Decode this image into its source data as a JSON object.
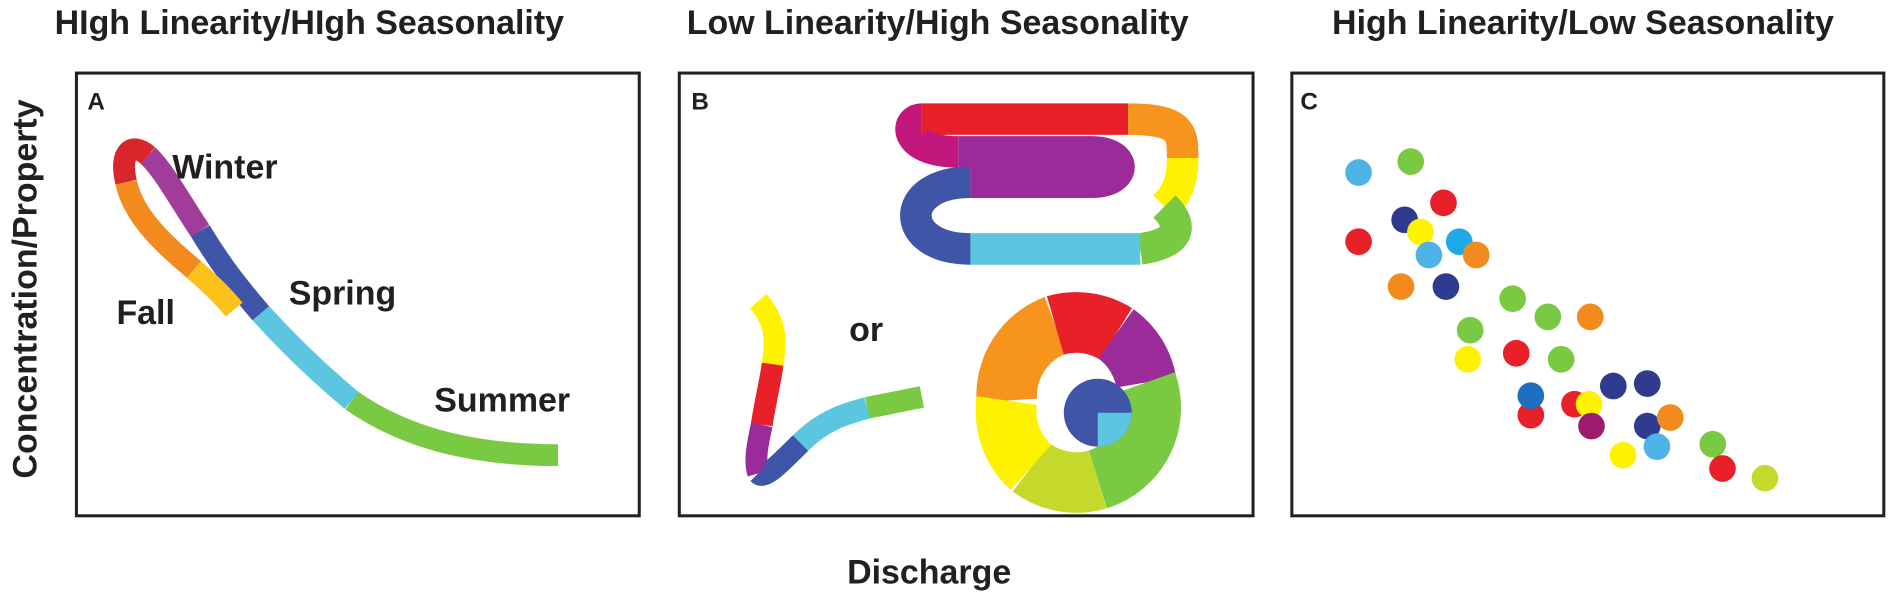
{
  "titles": [
    "HIgh Linearity/HIgh Seasonality",
    "Low Linearity/High Seasonality",
    "High Linearity/Low Seasonality"
  ],
  "panels": [
    {
      "letter": "A",
      "labels": [
        "Winter",
        "Fall",
        "Spring",
        "Summer"
      ]
    },
    {
      "letter": "B",
      "labels": [
        "or"
      ]
    },
    {
      "letter": "C"
    }
  ],
  "y_axis_label": "Concentration/Property",
  "x_axis_label": "Discharge"
}
